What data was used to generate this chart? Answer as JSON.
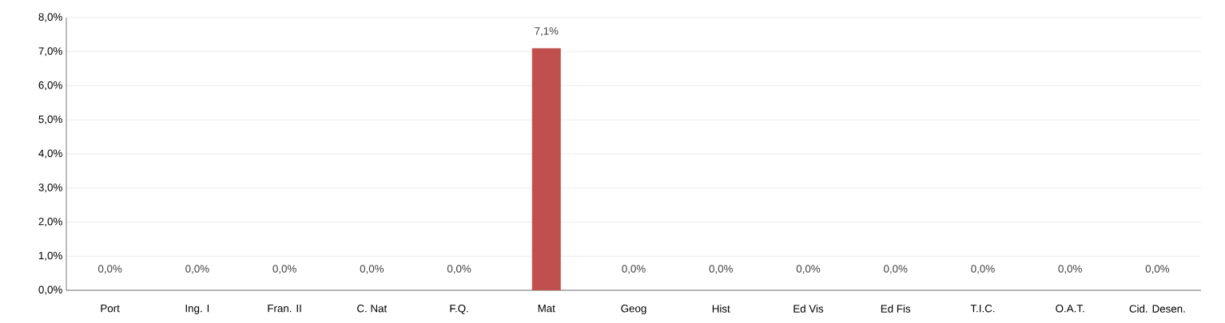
{
  "chart_data": {
    "type": "bar",
    "categories": [
      "Port",
      "Ing. I",
      "Fran. II",
      "C. Nat",
      "F.Q.",
      "Mat",
      "Geog",
      "Hist",
      "Ed Vis",
      "Ed Fis",
      "T.I.C.",
      "O.A.T.",
      "Cid. Desen."
    ],
    "values": [
      0,
      0,
      0,
      0,
      0,
      7.1,
      0,
      0,
      0,
      0,
      0,
      0,
      0
    ],
    "value_labels": [
      "0,0%",
      "0,0%",
      "0,0%",
      "0,0%",
      "0,0%",
      null,
      "0,0%",
      "0,0%",
      "0,0%",
      "0,0%",
      "0,0%",
      "0,0%",
      "0,0%"
    ],
    "annotations": [
      {
        "text": "7,1%",
        "x": "Mat",
        "y": 7.1
      }
    ],
    "color": "#c0504d",
    "ylim": [
      0,
      8
    ],
    "yticks": [
      {
        "value": 0,
        "label": "0,0%"
      },
      {
        "value": 1,
        "label": "1,0%"
      },
      {
        "value": 2,
        "label": "2,0%"
      },
      {
        "value": 3,
        "label": "3,0%"
      },
      {
        "value": 4,
        "label": "4,0%"
      },
      {
        "value": 5,
        "label": "5,0%"
      },
      {
        "value": 6,
        "label": "6,0%"
      },
      {
        "value": 7,
        "label": "7,0%"
      },
      {
        "value": 8,
        "label": "8,0%"
      }
    ],
    "grid": "y"
  }
}
